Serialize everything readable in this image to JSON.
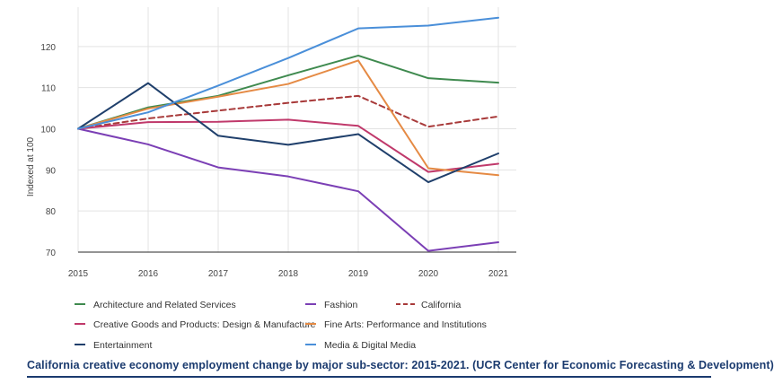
{
  "chart_data": {
    "type": "line",
    "title": "",
    "xlabel": "",
    "ylabel": "Indexed at 100",
    "x": [
      "2015",
      "2016",
      "2017",
      "2018",
      "2019",
      "2020",
      "2021"
    ],
    "ylim": [
      70,
      130
    ],
    "yticks": [
      70,
      80,
      90,
      100,
      110,
      120
    ],
    "grid": true,
    "legend_position": "bottom",
    "series": [
      {
        "name": "Architecture and Related Services",
        "color": "#3f8a4f",
        "dashed": false,
        "values": [
          100,
          105.2,
          108,
          113,
          117.8,
          112.3,
          111.2
        ]
      },
      {
        "name": "Fashion",
        "color": "#7b3fb5",
        "dashed": false,
        "values": [
          100,
          96.2,
          90.6,
          88.4,
          84.8,
          70.3,
          72.4
        ]
      },
      {
        "name": "California",
        "color": "#a83a3a",
        "dashed": true,
        "values": [
          100,
          102.5,
          104.4,
          106.3,
          108,
          100.5,
          103
        ]
      },
      {
        "name": "Creative Goods and Products: Design & Manufacture",
        "color": "#c0396b",
        "dashed": false,
        "values": [
          100,
          101.6,
          101.7,
          102.2,
          100.7,
          89.5,
          91.5
        ]
      },
      {
        "name": "Fine Arts: Performance and Institutions",
        "color": "#e58a44",
        "dashed": false,
        "values": [
          100,
          104.9,
          107.8,
          110.9,
          116.6,
          90.4,
          88.7
        ]
      },
      {
        "name": "Entertainment",
        "color": "#1f3f6b",
        "dashed": false,
        "values": [
          100,
          111.1,
          98.3,
          96.1,
          98.7,
          87,
          94
        ]
      },
      {
        "name": "Media & Digital Media",
        "color": "#4a8fd9",
        "dashed": false,
        "values": [
          100,
          104,
          110.5,
          117.2,
          124.4,
          125.1,
          127
        ]
      }
    ]
  },
  "caption": "California creative economy employment change by major sub-sector: 2015-2021. (UCR Center for Economic Forecasting & Development)"
}
